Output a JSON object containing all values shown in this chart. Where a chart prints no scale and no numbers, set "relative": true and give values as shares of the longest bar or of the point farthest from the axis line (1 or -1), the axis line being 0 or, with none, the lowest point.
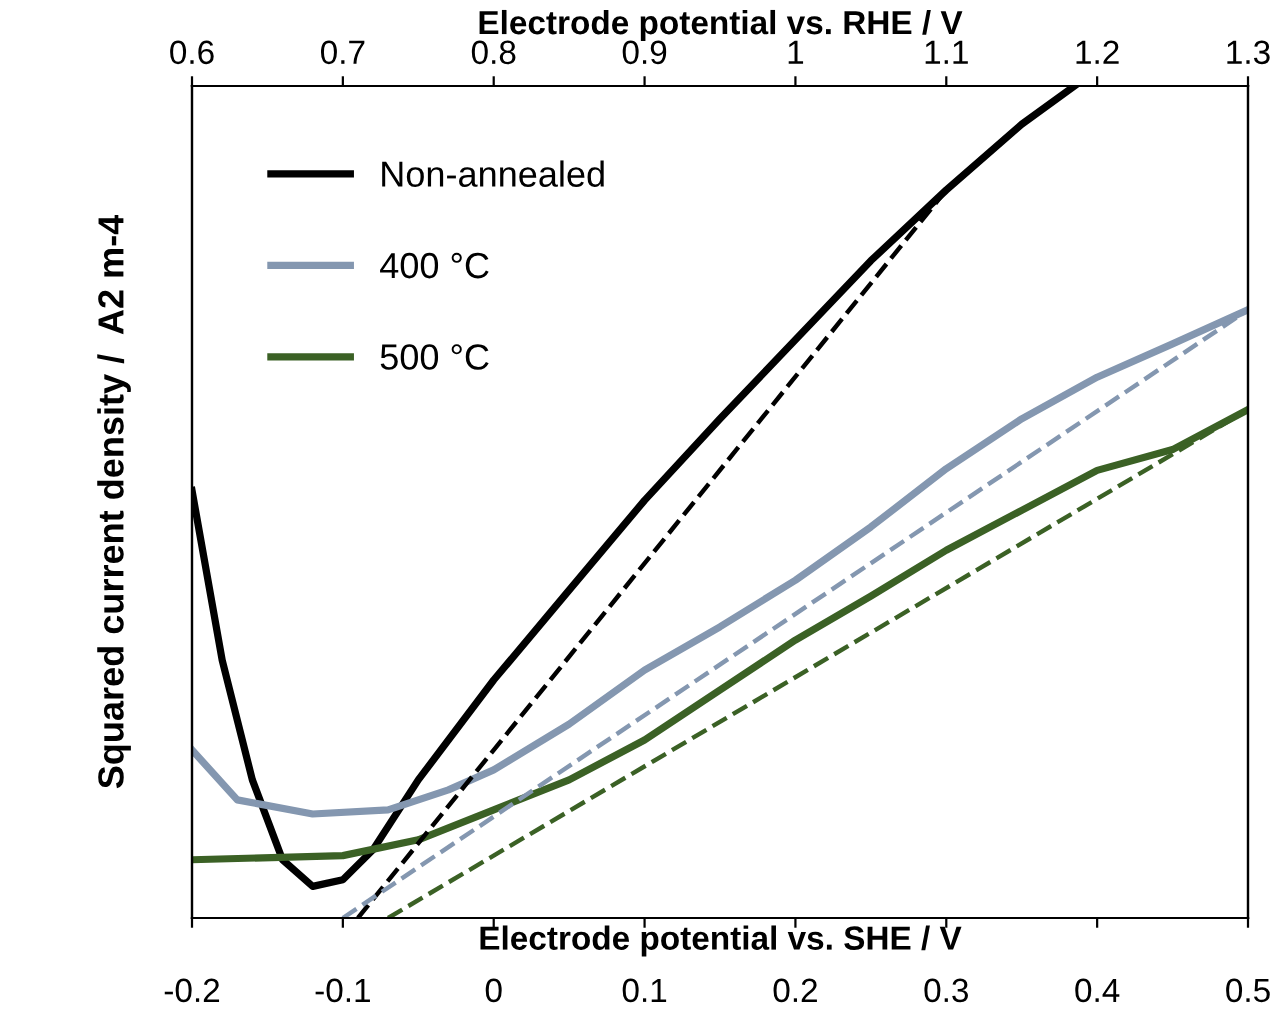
{
  "chart_data": {
    "type": "line",
    "relative": true,
    "xlabel": "Electrode potential vs. SHE / V",
    "x2label": "Electrode potential vs. RHE / V",
    "ylabel": "Squared current density /  A2 m-4",
    "xlim": [
      -0.2,
      0.5
    ],
    "xticks": [
      -0.2,
      -0.1,
      0,
      0.1,
      0.2,
      0.3,
      0.4,
      0.5
    ],
    "x2lim": [
      0.6,
      1.3
    ],
    "x2ticks": [
      0.6,
      0.7,
      0.8,
      0.9,
      1,
      1.1,
      1.2,
      1.3
    ],
    "legend": "top left",
    "grid": false,
    "series": [
      {
        "name": "Non-annealed",
        "color": "#000000",
        "line_style": "solid",
        "x": [
          -0.2,
          -0.18,
          -0.16,
          -0.14,
          -0.12,
          -0.1,
          -0.08,
          -0.05,
          0,
          0.05,
          0.1,
          0.15,
          0.2,
          0.25,
          0.3,
          0.35,
          0.385
        ],
        "values": [
          0.514,
          0.31,
          0.166,
          0.07,
          0.038,
          0.046,
          0.082,
          0.166,
          0.286,
          0.394,
          0.502,
          0.6,
          0.695,
          0.79,
          0.875,
          0.954,
          1.0
        ]
      },
      {
        "name": "400 °C",
        "color": "#8497b0",
        "line_style": "solid",
        "x": [
          -0.2,
          -0.17,
          -0.12,
          -0.07,
          -0.03,
          0,
          0.05,
          0.1,
          0.15,
          0.2,
          0.25,
          0.3,
          0.35,
          0.4,
          0.45,
          0.5
        ],
        "values": [
          0.202,
          0.142,
          0.125,
          0.13,
          0.154,
          0.178,
          0.233,
          0.298,
          0.35,
          0.406,
          0.47,
          0.54,
          0.6,
          0.65,
          0.69,
          0.731
        ]
      },
      {
        "name": "500 °C",
        "color": "#3b6125",
        "line_style": "solid",
        "x": [
          -0.2,
          -0.1,
          -0.05,
          0,
          0.05,
          0.1,
          0.15,
          0.2,
          0.25,
          0.3,
          0.35,
          0.4,
          0.45,
          0.5
        ],
        "values": [
          0.07,
          0.075,
          0.094,
          0.13,
          0.166,
          0.214,
          0.274,
          0.334,
          0.387,
          0.442,
          0.49,
          0.538,
          0.563,
          0.611
        ]
      },
      {
        "color": "#000000",
        "line_style": "dashed",
        "x": [
          -0.09,
          0.3
        ],
        "values": [
          0,
          0.875
        ]
      },
      {
        "color": "#8497b0",
        "line_style": "dashed",
        "x": [
          -0.1,
          0.5
        ],
        "values": [
          0,
          0.731
        ]
      },
      {
        "color": "#3b6125",
        "line_style": "dashed",
        "x": [
          -0.07,
          0.5
        ],
        "values": [
          0,
          0.611
        ]
      }
    ]
  }
}
